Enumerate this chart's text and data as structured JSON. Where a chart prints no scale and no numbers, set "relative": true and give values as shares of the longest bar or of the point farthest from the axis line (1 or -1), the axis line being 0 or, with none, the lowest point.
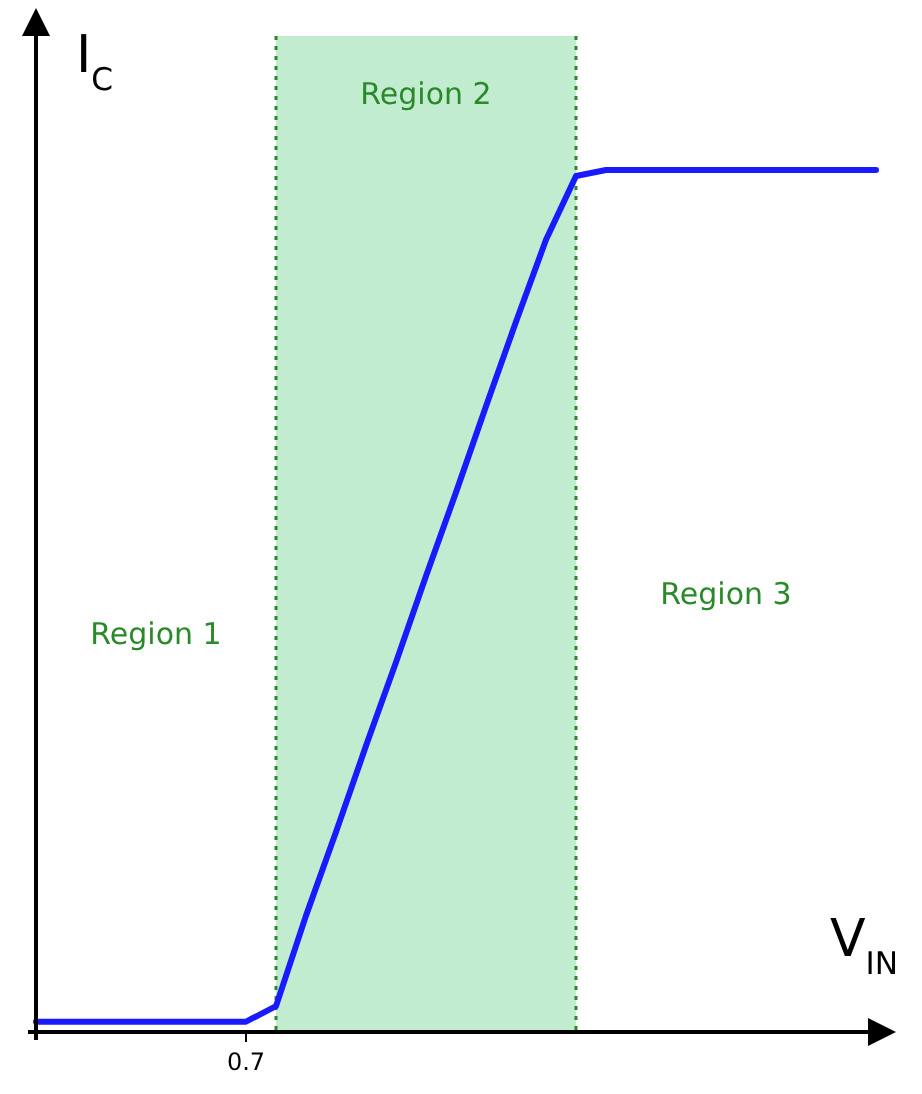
{
  "chart_data": {
    "type": "line",
    "relative": true,
    "xlabel": "V$_{IN}$",
    "ylabel": "I$_{C}$",
    "line_style": "solid",
    "categories": [
      null,
      null,
      null,
      null,
      null,
      null,
      null,
      null,
      null,
      null,
      null,
      null,
      null,
      null,
      null,
      null,
      null,
      null,
      null,
      null,
      null,
      null,
      null,
      null,
      null,
      null,
      null,
      null,
      null
    ],
    "series": [
      {
        "color": "#1a1aff",
        "values": [
          0.012,
          0.012,
          0.012,
          0.012,
          0.012,
          0.012,
          0.012,
          0.012,
          0.03,
          0.135,
          0.232,
          0.332,
          0.429,
          0.529,
          0.626,
          0.726,
          0.824,
          0.919,
          0.993,
          1,
          1,
          1,
          1,
          1,
          1,
          1,
          1,
          1,
          1
        ]
      }
    ],
    "annotations": [
      "Region 1",
      "Region 2",
      "Region 3",
      "0.7"
    ]
  }
}
